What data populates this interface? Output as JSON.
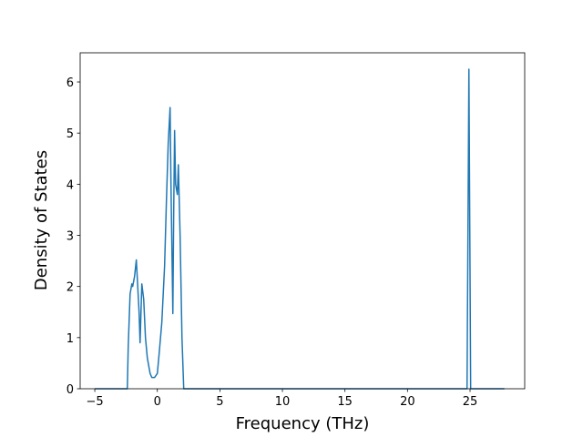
{
  "chart_data": {
    "type": "line",
    "xlabel": "Frequency (THz)",
    "ylabel": "Density of States",
    "color": "#1f77b4",
    "x": [
      -5,
      -2.4,
      -2.33,
      -2.18,
      -2.04,
      -1.97,
      -1.82,
      -1.68,
      -1.46,
      -1.38,
      -1.24,
      -1.09,
      -0.95,
      -0.8,
      -0.58,
      -0.44,
      -0.22,
      0,
      0.15,
      0.36,
      0.58,
      0.73,
      0.87,
      1.02,
      1.09,
      1.24,
      1.31,
      1.38,
      1.46,
      1.6,
      1.68,
      1.82,
      1.97,
      2.11,
      24.76,
      24.91,
      25.05,
      27.75
    ],
    "values": [
      0,
      0,
      0.8,
      1.85,
      2.05,
      2.0,
      2.2,
      2.52,
      1.5,
      0.9,
      2.05,
      1.75,
      1.0,
      0.6,
      0.3,
      0.22,
      0.22,
      0.3,
      0.7,
      1.3,
      2.4,
      3.7,
      4.8,
      5.5,
      4.0,
      1.47,
      3.5,
      5.05,
      4.0,
      3.8,
      4.38,
      3.0,
      1.0,
      0,
      0,
      6.25,
      0,
      0
    ],
    "xlim": [
      -6.17,
      29.37
    ],
    "ylim": [
      0,
      6.57
    ],
    "xticks": [
      {
        "value": -5,
        "label": "−5"
      },
      0,
      5,
      10,
      15,
      20,
      25
    ],
    "yticks": [
      0,
      1,
      2,
      3,
      4,
      5,
      6
    ]
  }
}
